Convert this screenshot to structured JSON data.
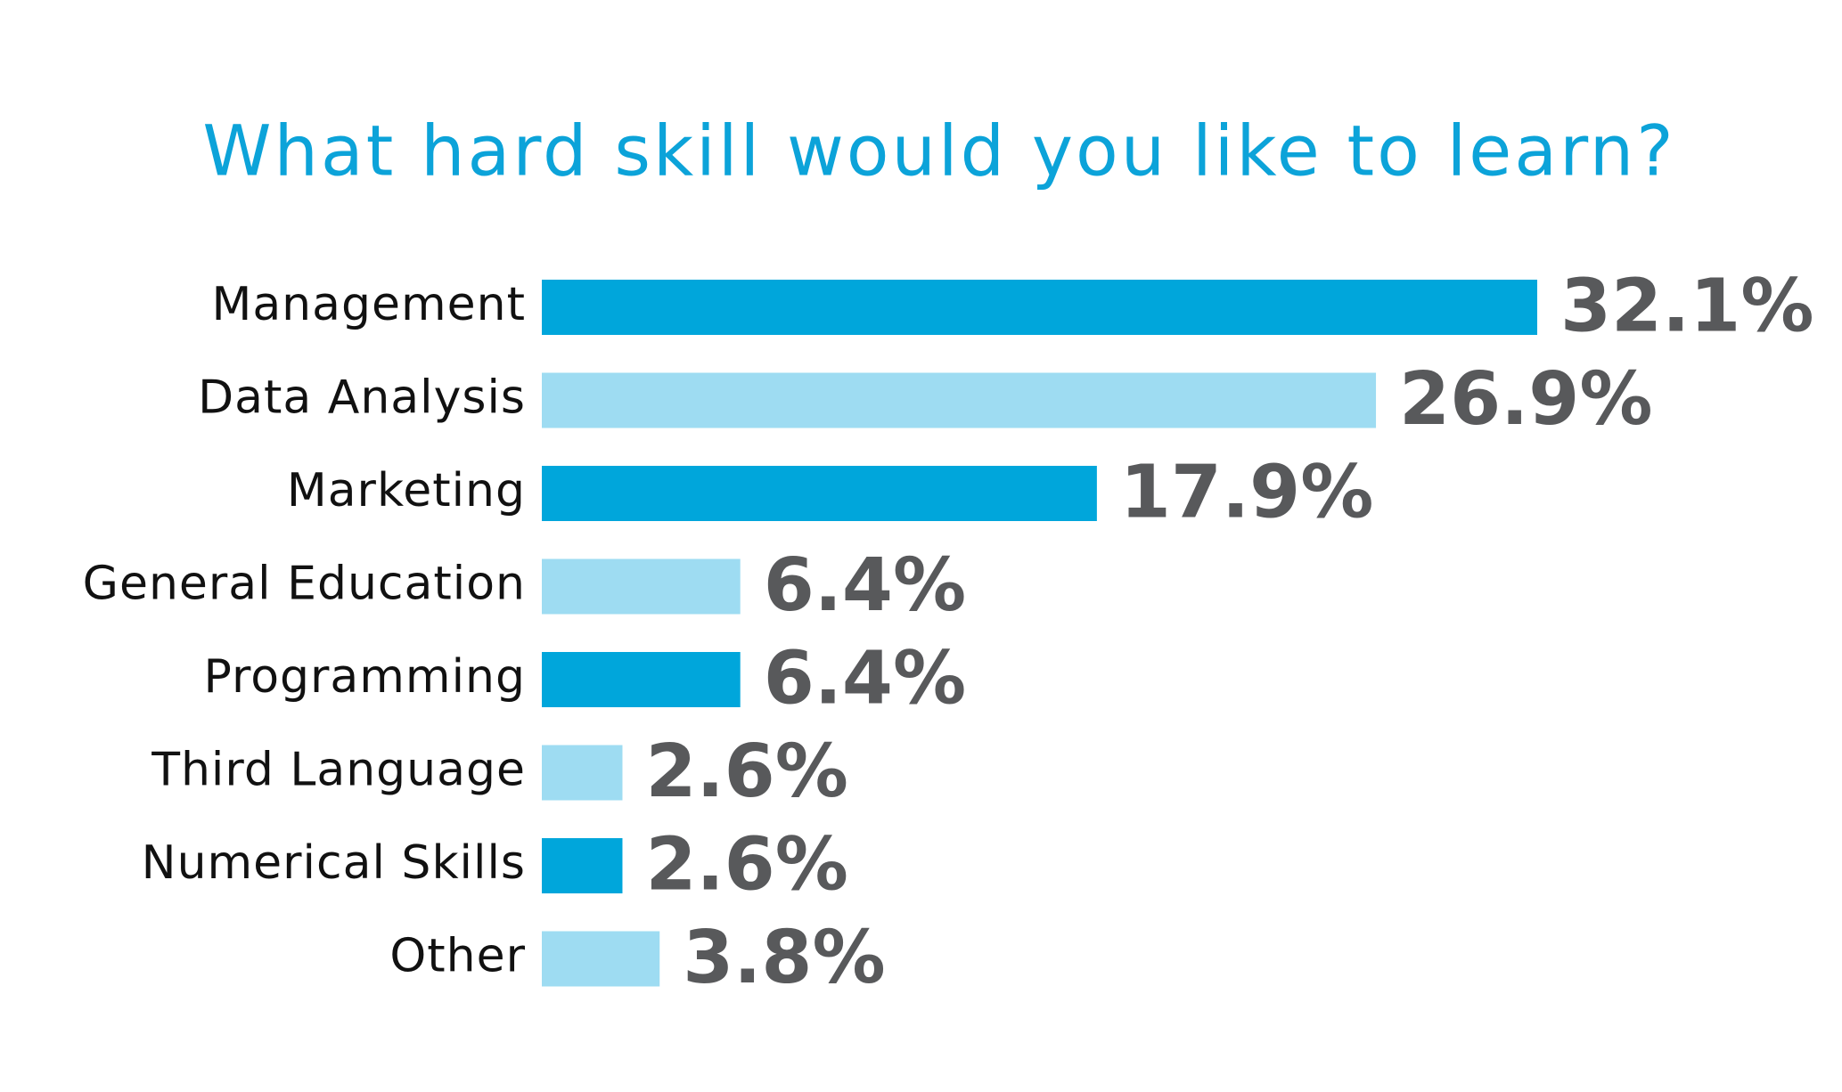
{
  "chart_data": {
    "type": "bar",
    "orientation": "horizontal",
    "title": "What hard skill would you like to learn?",
    "categories": [
      "Management",
      "Data Analysis",
      "Marketing",
      "General Education",
      "Programming",
      "Third Language",
      "Numerical Skills",
      "Other"
    ],
    "values": [
      32.1,
      26.9,
      17.9,
      6.4,
      6.4,
      2.6,
      2.6,
      3.8
    ],
    "value_labels": [
      "32.1%",
      "26.9%",
      "17.9%",
      "6.4%",
      "6.4%",
      "2.6%",
      "2.6%",
      "3.8%"
    ],
    "colors": [
      "#00a6db",
      "#9edcf2",
      "#00a6db",
      "#9edcf2",
      "#00a6db",
      "#9edcf2",
      "#00a6db",
      "#9edcf2"
    ]
  }
}
